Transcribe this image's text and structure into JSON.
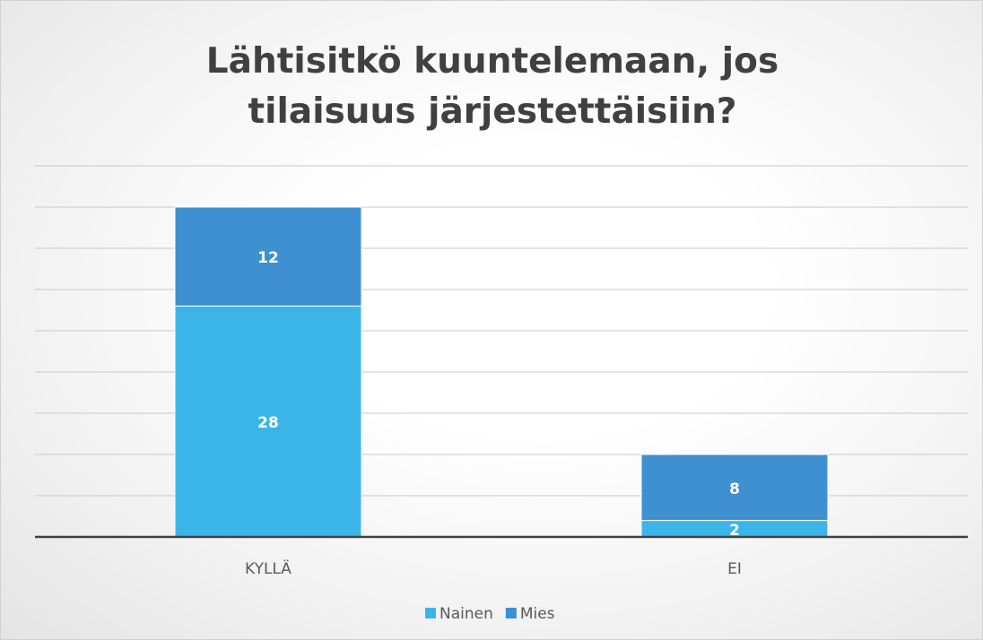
{
  "chart_data": {
    "type": "stacked_bar",
    "title": "Lähtisitkö kuuntelemaan, jos tilaisuus järjestettäisiin?",
    "categories": [
      "KYLLÄ",
      "EI"
    ],
    "series": [
      {
        "name": "Nainen",
        "color": "#3bb5e8",
        "values": [
          28,
          2
        ]
      },
      {
        "name": "Mies",
        "color": "#3e90d0",
        "values": [
          12,
          8
        ]
      }
    ],
    "ylim": [
      0,
      45
    ],
    "yticks": [
      0,
      5,
      10,
      15,
      20,
      25,
      30,
      35,
      40,
      45
    ],
    "grid": true,
    "legend": "bottom"
  }
}
